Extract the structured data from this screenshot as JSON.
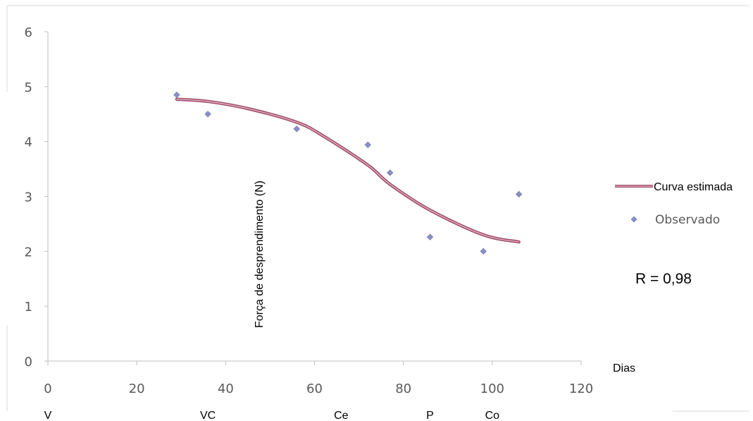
{
  "chart_data": {
    "type": "scatter",
    "title": "",
    "xlabel": "Dias",
    "ylabel": "Força de desprendimento (N)",
    "xlim": [
      0,
      120
    ],
    "ylim": [
      0,
      6
    ],
    "x_ticks": [
      "0",
      "20",
      "40",
      "60",
      "80",
      "100",
      "120"
    ],
    "y_ticks": [
      "0",
      "1",
      "2",
      "3",
      "4",
      "5",
      "6"
    ],
    "grid": false,
    "legend_position": "right",
    "series": [
      {
        "name": "Curva estimada",
        "kind": "line",
        "color": "#A0506A",
        "x": [
          29,
          36,
          45,
          56,
          62,
          72,
          77,
          86,
          98,
          106
        ],
        "y": [
          4.77,
          4.73,
          4.6,
          4.35,
          4.1,
          3.57,
          3.22,
          2.75,
          2.3,
          2.17
        ]
      },
      {
        "name": "Observado",
        "kind": "scatter",
        "color": "#8A8FC8",
        "marker": "diamond",
        "x": [
          29,
          36,
          56,
          72,
          77,
          86,
          98,
          106
        ],
        "y": [
          4.85,
          4.5,
          4.23,
          3.94,
          3.43,
          2.26,
          2.0,
          3.04
        ]
      }
    ],
    "stage_labels": [
      {
        "text": "V",
        "x": 0
      },
      {
        "text": "VC",
        "x": 36
      },
      {
        "text": "Ce",
        "x": 66
      },
      {
        "text": "P",
        "x": 86
      },
      {
        "text": "Co",
        "x": 100
      }
    ],
    "annotation": "R = 0,98"
  }
}
